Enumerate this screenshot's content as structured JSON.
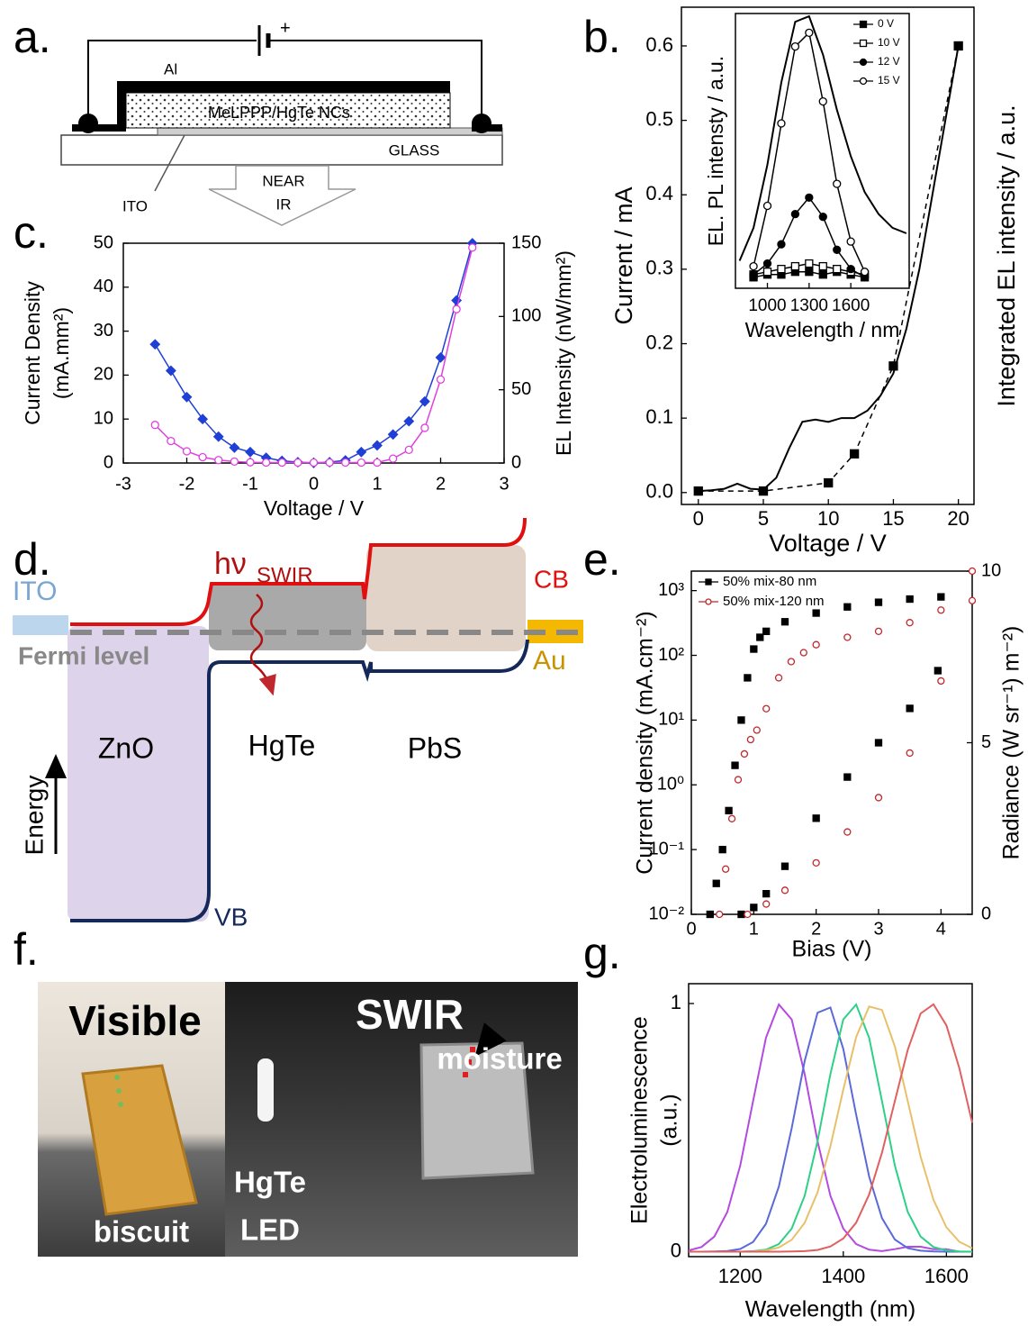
{
  "panel_labels": [
    "a.",
    "b.",
    "c.",
    "d.",
    "e.",
    "f.",
    "g."
  ],
  "device_diagram": {
    "electrode": "Al",
    "layer": "MeLPPP/HgTe NCs",
    "substrate": "GLASS",
    "anode": "ITO",
    "emission": [
      "NEAR",
      "IR"
    ],
    "polarity": "+"
  },
  "band_diagram": {
    "contact_left": "ITO",
    "fermi": "Fermi level",
    "layers": [
      "ZnO",
      "HgTe",
      "PbS"
    ],
    "contact_right": "Au",
    "cb": "CB",
    "vb": "VB",
    "axis": "Energy",
    "photon": "hν",
    "photon_sub": "SWIR"
  },
  "photo": {
    "left_title": "Visible",
    "right_title": "SWIR",
    "annotation": "moisture",
    "object": "biscuit",
    "source": [
      "HgTe",
      "LED"
    ]
  },
  "chart_data": [
    {
      "type": "line",
      "x_label": "Voltage / V",
      "y_label": "Current / mA",
      "y2_label": "Integrated EL intensity / a.u.",
      "x": [
        0,
        1,
        2,
        3,
        4,
        5,
        6,
        7,
        8,
        9,
        10,
        11,
        12,
        13,
        14,
        15,
        16,
        17,
        18,
        19,
        20
      ],
      "xlim": [
        -1.3,
        21.2
      ],
      "xticks": [
        0,
        5,
        10,
        15,
        20
      ],
      "ylim": [
        -0.016,
        0.652
      ],
      "yticks": [
        {
          "value": 0,
          "label": "0.0"
        },
        0.1,
        0.2,
        0.3,
        0.4,
        0.5,
        0.6
      ],
      "y2lim": [
        -0.016,
        0.652
      ],
      "series": [
        {
          "color": "#000000",
          "values": [
            0.002,
            0.003,
            0.005,
            0.012,
            0.005,
            0.004,
            0.02,
            0.06,
            0.095,
            0.098,
            0.095,
            0.1,
            0.1,
            0.11,
            0.13,
            0.16,
            0.22,
            0.3,
            0.4,
            0.5,
            0.6
          ]
        },
        {
          "color": "#000000",
          "axis": "y2",
          "dash": true,
          "marker": "square",
          "x": [
            0,
            5,
            10,
            12,
            15,
            20
          ],
          "values": [
            0.002,
            0.002,
            0.013,
            0.052,
            0.17,
            0.6
          ]
        }
      ]
    },
    {
      "type": "line",
      "x_label": "Wavelength / nm",
      "y_label": "EL. PL intensty / a.u.",
      "legend": "upper right",
      "x": [
        800,
        900,
        1000,
        1100,
        1200,
        1300,
        1400,
        1500,
        1600,
        1700,
        1800,
        1900,
        2000
      ],
      "xlim": [
        770,
        2020
      ],
      "xticks": [
        1000,
        1300,
        1600
      ],
      "ylim": [
        0,
        1
      ],
      "series": [
        {
          "name": "0 V",
          "color": "#000000",
          "marker": "square",
          "line": true,
          "values": [
            null,
            0.04,
            0.05,
            0.05,
            0.06,
            0.06,
            0.05,
            0.06,
            0.05,
            0.04,
            null,
            null,
            null
          ]
        },
        {
          "name": "10 V",
          "color": "#000000",
          "marker": "square-open",
          "line": true,
          "values": [
            null,
            0.05,
            0.06,
            0.07,
            0.08,
            0.09,
            0.08,
            0.07,
            0.06,
            0.05,
            null,
            null,
            null
          ]
        },
        {
          "name": "12 V",
          "color": "#000000",
          "marker": "circle",
          "line": true,
          "values": [
            null,
            0.05,
            0.09,
            0.16,
            0.27,
            0.33,
            0.26,
            0.14,
            0.07,
            0.04,
            null,
            null,
            null
          ]
        },
        {
          "name": "15 V",
          "color": "#000000",
          "marker": "circle-open",
          "line": true,
          "values": [
            null,
            0.08,
            0.3,
            0.6,
            0.88,
            0.93,
            0.68,
            0.38,
            0.17,
            0.06,
            null,
            null,
            null
          ]
        },
        {
          "color": "#000000",
          "values": [
            0.1,
            0.22,
            0.45,
            0.75,
            0.97,
            0.99,
            0.85,
            0.65,
            0.48,
            0.35,
            0.27,
            0.22,
            0.2
          ]
        }
      ]
    },
    {
      "type": "line",
      "x_label": "Voltage / V",
      "y_label": [
        "Current Density",
        "(mA.mm²)"
      ],
      "y2_label": "EL Intensity (nW/mm²)",
      "x": [
        -2.5,
        -2.25,
        -2,
        -1.75,
        -1.5,
        -1.25,
        -1,
        -0.75,
        -0.5,
        -0.25,
        0,
        0.25,
        0.5,
        0.75,
        1,
        1.25,
        1.5,
        1.75,
        2,
        2.25,
        2.5
      ],
      "xlim": [
        -3,
        3
      ],
      "xticks": [
        -3,
        -2,
        -1,
        0,
        1,
        2,
        3
      ],
      "ylim": [
        0,
        50
      ],
      "yticks": [
        0,
        10,
        20,
        30,
        40,
        50
      ],
      "y2lim": [
        0,
        150
      ],
      "y2ticks": [
        0,
        50,
        100,
        150
      ],
      "series": [
        {
          "color": "#1f3fd6",
          "marker": "diamond",
          "values": [
            27,
            21,
            15,
            10,
            6,
            3.5,
            2.5,
            1.2,
            0.5,
            0.2,
            0,
            0.2,
            0.6,
            2.5,
            4,
            6.5,
            9.5,
            14,
            24,
            37,
            50
          ]
        },
        {
          "color": "#e040e0",
          "axis": "y2",
          "marker": "circle-open",
          "values": [
            26,
            15,
            8,
            4,
            2,
            1,
            0.5,
            0.3,
            0.3,
            0.3,
            0.3,
            0.3,
            0.3,
            0.3,
            0.3,
            3,
            9,
            24,
            57,
            105,
            147
          ]
        }
      ]
    },
    {
      "type": "line",
      "x_label": "Bias (V)",
      "y_label": "Current density (mA.cm⁻²)",
      "y2_label": "Radiance (W sr⁻¹) m⁻²)",
      "legend": "upper left",
      "y_scale": "log",
      "xlim": [
        0,
        4.5
      ],
      "xticks": [
        0,
        1,
        2,
        3,
        4
      ],
      "ylim": [
        0.01,
        2000
      ],
      "yticks": [
        {
          "value": 0.01,
          "label": "10⁻²"
        },
        {
          "value": 0.1,
          "label": "10⁻¹"
        },
        {
          "value": 1,
          "label": "10⁰"
        },
        {
          "value": 10,
          "label": "10¹"
        },
        {
          "value": 100,
          "label": "10²"
        },
        {
          "value": 1000,
          "label": "10³"
        }
      ],
      "y2lim": [
        0,
        10
      ],
      "y2ticks": [
        0,
        5,
        10
      ],
      "series": [
        {
          "name": "50% mix-80 nm",
          "color": "#000000",
          "marker": "square",
          "line": false,
          "x": [
            0.3,
            0.4,
            0.5,
            0.6,
            0.7,
            0.8,
            0.9,
            1.0,
            1.1,
            1.2,
            1.5,
            2.0,
            2.5,
            3.0,
            3.5,
            4.0
          ],
          "values": [
            0.01,
            0.03,
            0.1,
            0.4,
            2,
            10,
            45,
            125,
            190,
            235,
            330,
            450,
            560,
            660,
            740,
            800
          ]
        },
        {
          "name": "50% mix-120 nm",
          "color": "#c0282d",
          "marker": "circle-open",
          "line": false,
          "x": [
            0.45,
            0.55,
            0.65,
            0.75,
            0.85,
            0.95,
            1.05,
            1.2,
            1.4,
            1.6,
            1.8,
            2.0,
            2.5,
            3.0,
            3.5,
            4.0,
            4.5
          ],
          "values": [
            0.01,
            0.05,
            0.3,
            1.2,
            3,
            5,
            7,
            15,
            45,
            80,
            110,
            146,
            190,
            235,
            320,
            500,
            700
          ]
        },
        {
          "color": "#000000",
          "axis": "y2",
          "marker": "square",
          "line": false,
          "x": [
            0.8,
            1.0,
            1.2,
            1.5,
            2.0,
            2.5,
            3.0,
            3.5,
            3.95
          ],
          "values": [
            0,
            0.2,
            0.6,
            1.4,
            2.8,
            4.0,
            5.0,
            6.0,
            7.1
          ]
        },
        {
          "color": "#c0282d",
          "axis": "y2",
          "marker": "circle-open",
          "line": false,
          "x": [
            0.9,
            1.2,
            1.5,
            2.0,
            2.5,
            3.0,
            3.5,
            4.0,
            4.5
          ],
          "values": [
            0,
            0.3,
            0.7,
            1.5,
            2.4,
            3.4,
            4.7,
            6.8,
            10
          ]
        }
      ]
    },
    {
      "type": "line",
      "x_label": "Wavelength (nm)",
      "y_label": [
        "Electroluminescence",
        "(a.u.)"
      ],
      "x": [
        1100,
        1125,
        1150,
        1175,
        1200,
        1225,
        1250,
        1275,
        1300,
        1325,
        1350,
        1375,
        1400,
        1425,
        1450,
        1475,
        1500,
        1525,
        1550,
        1575,
        1600,
        1625,
        1650
      ],
      "xlim": [
        1100,
        1650
      ],
      "xticks": [
        1200,
        1400,
        1600
      ],
      "ylim": [
        -0.02,
        1.08
      ],
      "yticks": [
        0,
        1
      ],
      "series": [
        {
          "color": "#b44be0",
          "values": [
            0.005,
            0.019,
            0.061,
            0.16,
            0.347,
            0.607,
            0.862,
            0.996,
            0.936,
            0.716,
            0.445,
            0.225,
            0.093,
            0.031,
            0.008,
            0.002,
            0.01,
            0.02,
            0.02,
            0.01,
            0.01,
            0,
            0
          ]
        },
        {
          "color": "#5a6ad8",
          "values": [
            0,
            0,
            0.001,
            0.003,
            0.011,
            0.039,
            0.112,
            0.262,
            0.498,
            0.768,
            0.963,
            0.984,
            0.817,
            0.552,
            0.303,
            0.135,
            0.049,
            0.014,
            0.004,
            0.001,
            0,
            0,
            0
          ]
        },
        {
          "color": "#2ed087",
          "values": [
            0,
            0,
            0,
            0,
            0,
            0.002,
            0.008,
            0.031,
            0.093,
            0.225,
            0.445,
            0.716,
            0.936,
            0.996,
            0.862,
            0.607,
            0.347,
            0.16,
            0.061,
            0.019,
            0.005,
            0.001,
            0
          ]
        },
        {
          "color": "#e8c06a",
          "values": [
            0,
            0,
            0,
            0,
            0,
            0.001,
            0.005,
            0.017,
            0.048,
            0.116,
            0.239,
            0.425,
            0.653,
            0.865,
            0.988,
            0.974,
            0.827,
            0.607,
            0.383,
            0.209,
            0.098,
            0.04,
            0.014
          ]
        },
        {
          "color": "#e06060",
          "values": [
            0,
            0,
            0,
            0,
            0,
            0,
            0,
            0,
            0.001,
            0.002,
            0.007,
            0.021,
            0.053,
            0.117,
            0.23,
            0.399,
            0.607,
            0.813,
            0.96,
            0.997,
            0.912,
            0.74,
            0.52
          ]
        }
      ]
    }
  ]
}
